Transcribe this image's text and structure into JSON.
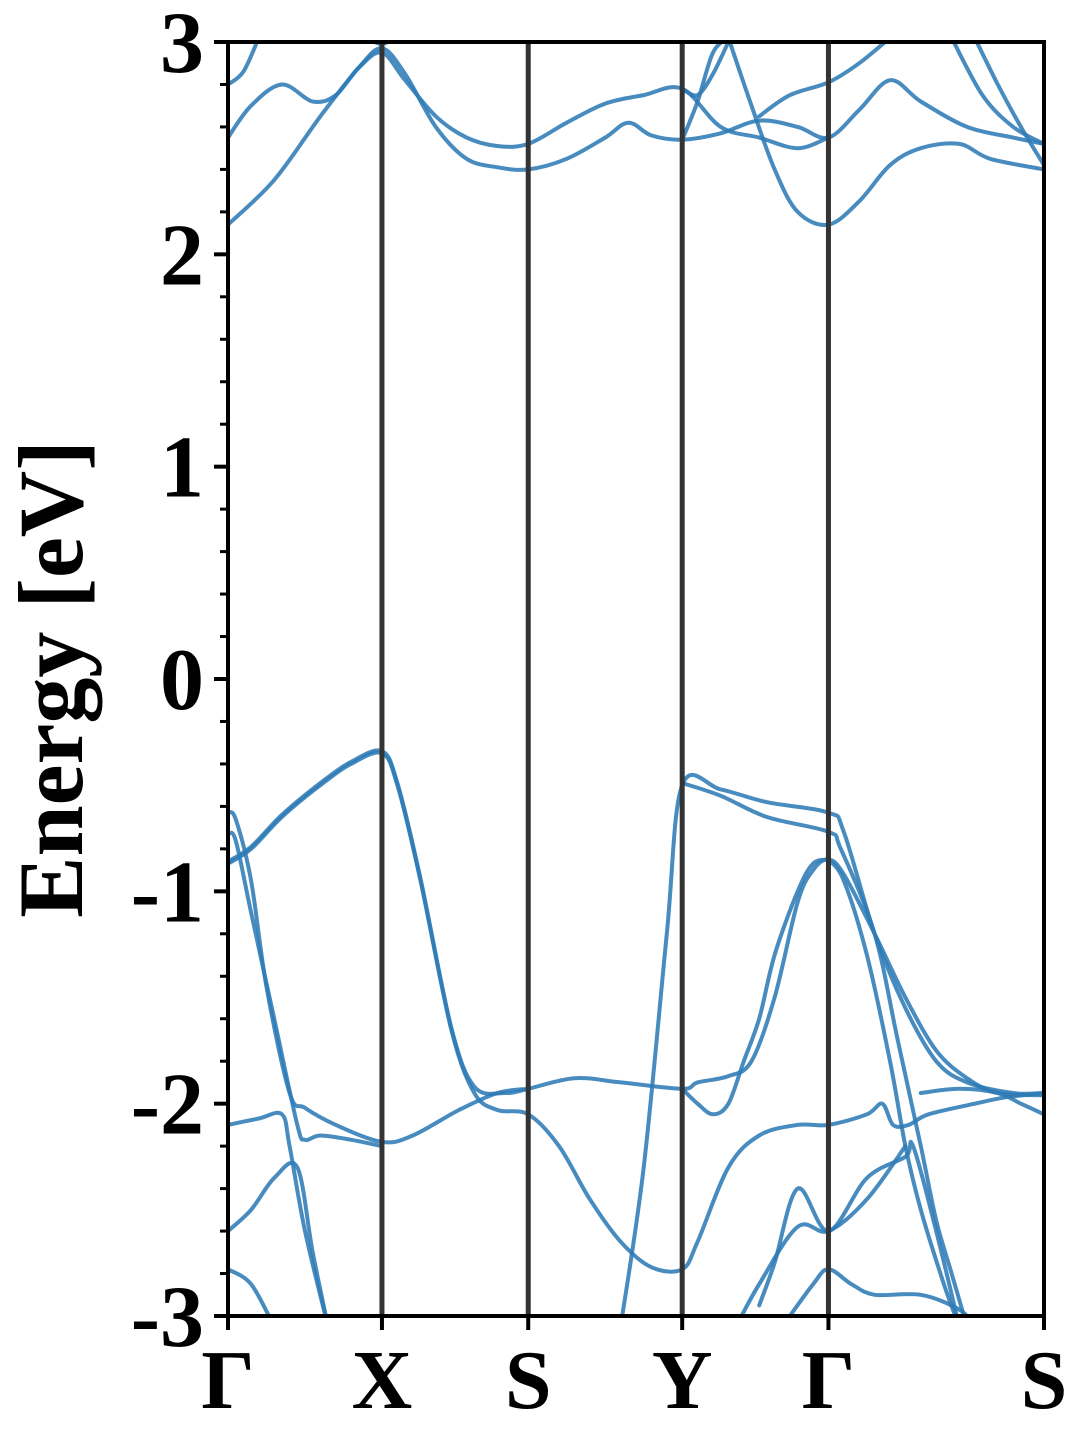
{
  "chart_data": {
    "type": "line",
    "title": "",
    "xlabel": "",
    "ylabel": "Energy [eV]",
    "ylim": [
      -3,
      3
    ],
    "yticks": [
      -3,
      -2,
      -1,
      0,
      1,
      2,
      3
    ],
    "yminor_step": 0.2,
    "xlim": [
      0,
      5.3
    ],
    "high_symmetry_points": [
      {
        "label": "Γ",
        "x": 0.0
      },
      {
        "label": "X",
        "x": 1.0
      },
      {
        "label": "S",
        "x": 1.95
      },
      {
        "label": "Y",
        "x": 2.95
      },
      {
        "label": "Γ",
        "x": 3.9
      },
      {
        "label": "S",
        "x": 5.3
      }
    ],
    "grid": false,
    "colors": {
      "band": "#2e7bb6",
      "kpath_line": "#333333",
      "axis": "#000000"
    },
    "series": [
      {
        "values": [
          [
            0.0,
            -0.87
          ],
          [
            0.15,
            -0.8
          ],
          [
            0.35,
            -0.65
          ],
          [
            0.6,
            -0.5
          ],
          [
            0.8,
            -0.4
          ],
          [
            1.0,
            -0.35
          ],
          [
            1.1,
            -0.5
          ],
          [
            1.25,
            -0.95
          ],
          [
            1.45,
            -1.65
          ],
          [
            1.6,
            -1.95
          ],
          [
            1.75,
            -2.03
          ],
          [
            1.95,
            -2.05
          ],
          [
            2.15,
            -2.2
          ],
          [
            2.35,
            -2.45
          ],
          [
            2.55,
            -2.65
          ],
          [
            2.75,
            -2.77
          ],
          [
            2.95,
            -2.78
          ],
          [
            3.05,
            -2.65
          ],
          [
            3.25,
            -2.3
          ],
          [
            3.45,
            -2.15
          ],
          [
            3.7,
            -2.1
          ],
          [
            3.9,
            -2.1
          ],
          [
            4.15,
            -2.05
          ],
          [
            4.25,
            -2.0
          ],
          [
            4.32,
            -2.1
          ],
          [
            4.42,
            -2.1
          ],
          [
            4.55,
            -2.05
          ],
          [
            4.85,
            -2.0
          ],
          [
            5.05,
            -1.97
          ],
          [
            5.3,
            -1.95
          ]
        ]
      },
      {
        "values": [
          [
            0.0,
            -0.86
          ],
          [
            0.15,
            -0.79
          ],
          [
            0.35,
            -0.64
          ],
          [
            0.6,
            -0.49
          ],
          [
            0.8,
            -0.39
          ],
          [
            1.0,
            -0.34
          ],
          [
            1.1,
            -0.49
          ],
          [
            1.25,
            -0.94
          ],
          [
            1.45,
            -1.64
          ],
          [
            1.6,
            -1.92
          ],
          [
            1.8,
            -1.95
          ],
          [
            1.95,
            -1.93
          ],
          [
            2.25,
            -1.88
          ],
          [
            2.55,
            -1.9
          ],
          [
            2.95,
            -1.93
          ],
          [
            3.05,
            -1.9
          ],
          [
            3.25,
            -1.87
          ],
          [
            3.4,
            -1.8
          ],
          [
            3.55,
            -1.5
          ],
          [
            3.7,
            -1.05
          ],
          [
            3.8,
            -0.9
          ],
          [
            3.9,
            -0.85
          ],
          [
            4.0,
            -0.92
          ],
          [
            4.2,
            -1.2
          ],
          [
            4.4,
            -1.5
          ],
          [
            4.6,
            -1.75
          ],
          [
            4.8,
            -1.88
          ],
          [
            5.0,
            -1.95
          ],
          [
            5.3,
            -1.96
          ]
        ]
      },
      {
        "values": [
          [
            0.0,
            -0.63
          ],
          [
            0.05,
            -0.66
          ],
          [
            0.15,
            -0.95
          ],
          [
            0.25,
            -1.45
          ],
          [
            0.4,
            -1.95
          ],
          [
            0.5,
            -2.02
          ],
          [
            0.7,
            -2.1
          ],
          [
            1.0,
            -2.18
          ],
          [
            1.2,
            -2.15
          ],
          [
            1.5,
            -2.03
          ],
          [
            1.75,
            -1.95
          ],
          [
            1.95,
            -1.93
          ]
        ]
      },
      {
        "values": [
          [
            0.0,
            -0.73
          ],
          [
            0.05,
            -0.76
          ],
          [
            0.15,
            -1.1
          ],
          [
            0.3,
            -1.6
          ],
          [
            0.45,
            -2.1
          ],
          [
            0.5,
            -2.17
          ],
          [
            0.6,
            -2.15
          ],
          [
            0.8,
            -2.17
          ],
          [
            1.0,
            -2.2
          ]
        ]
      },
      {
        "values": [
          [
            2.55,
            -3.05
          ],
          [
            2.7,
            -2.3
          ],
          [
            2.85,
            -1.2
          ],
          [
            2.95,
            -0.5
          ],
          [
            3.2,
            -0.52
          ],
          [
            3.5,
            -0.58
          ],
          [
            3.9,
            -0.63
          ],
          [
            4.0,
            -0.72
          ],
          [
            4.2,
            -1.2
          ],
          [
            4.4,
            -1.55
          ],
          [
            4.6,
            -1.8
          ],
          [
            4.8,
            -1.9
          ],
          [
            5.1,
            -1.95
          ],
          [
            5.3,
            -1.95
          ]
        ]
      },
      {
        "values": [
          [
            2.95,
            -0.49
          ],
          [
            3.2,
            -0.55
          ],
          [
            3.5,
            -0.65
          ],
          [
            3.9,
            -0.72
          ],
          [
            3.98,
            -0.8
          ],
          [
            4.2,
            -1.2
          ],
          [
            4.35,
            -1.7
          ],
          [
            4.5,
            -2.2
          ],
          [
            4.6,
            -2.55
          ],
          [
            4.7,
            -2.8
          ],
          [
            4.8,
            -3.05
          ]
        ]
      },
      {
        "values": [
          [
            3.9,
            -0.85
          ],
          [
            4.0,
            -0.95
          ],
          [
            4.15,
            -1.3
          ],
          [
            4.3,
            -1.8
          ],
          [
            4.4,
            -2.2
          ],
          [
            4.5,
            -2.5
          ],
          [
            4.65,
            -2.85
          ],
          [
            4.75,
            -3.05
          ]
        ]
      },
      {
        "values": [
          [
            2.95,
            -1.93
          ],
          [
            3.05,
            -2.0
          ],
          [
            3.15,
            -2.05
          ],
          [
            3.25,
            -2.0
          ],
          [
            3.35,
            -1.8
          ],
          [
            3.45,
            -1.6
          ],
          [
            3.55,
            -1.3
          ],
          [
            3.7,
            -1.0
          ],
          [
            3.8,
            -0.87
          ],
          [
            3.9,
            -0.85
          ]
        ]
      },
      {
        "values": [
          [
            0.0,
            -2.1
          ],
          [
            0.2,
            -2.07
          ],
          [
            0.35,
            -2.05
          ],
          [
            0.4,
            -2.2
          ],
          [
            0.5,
            -2.6
          ],
          [
            0.65,
            -3.05
          ]
        ]
      },
      {
        "values": [
          [
            0.0,
            -2.6
          ],
          [
            0.15,
            -2.5
          ],
          [
            0.3,
            -2.35
          ],
          [
            0.45,
            -2.3
          ],
          [
            0.55,
            -2.7
          ],
          [
            0.65,
            -3.05
          ]
        ]
      },
      {
        "values": [
          [
            0.0,
            -2.78
          ],
          [
            0.15,
            -2.85
          ],
          [
            0.3,
            -3.05
          ]
        ]
      },
      {
        "values": [
          [
            3.45,
            -2.95
          ],
          [
            3.55,
            -2.75
          ],
          [
            3.7,
            -2.4
          ],
          [
            3.9,
            -2.6
          ],
          [
            4.15,
            -2.35
          ],
          [
            4.4,
            -2.25
          ],
          [
            4.45,
            -2.2
          ],
          [
            4.6,
            -2.6
          ],
          [
            4.75,
            -3.05
          ]
        ]
      },
      {
        "values": [
          [
            3.3,
            -3.05
          ],
          [
            3.45,
            -2.85
          ],
          [
            3.7,
            -2.58
          ],
          [
            3.9,
            -2.6
          ],
          [
            4.15,
            -2.45
          ],
          [
            4.4,
            -2.2
          ]
        ]
      },
      {
        "values": [
          [
            3.6,
            -3.05
          ],
          [
            3.8,
            -2.85
          ],
          [
            3.9,
            -2.78
          ],
          [
            4.05,
            -2.85
          ],
          [
            4.2,
            -2.9
          ],
          [
            4.5,
            -2.9
          ],
          [
            4.75,
            -2.97
          ],
          [
            4.85,
            -3.05
          ]
        ]
      },
      {
        "values": [
          [
            4.5,
            -1.95
          ],
          [
            4.75,
            -1.93
          ],
          [
            5.0,
            -1.95
          ],
          [
            5.15,
            -2.0
          ],
          [
            5.3,
            -2.05
          ]
        ]
      },
      {
        "values": [
          [
            0.0,
            2.14
          ],
          [
            0.3,
            2.35
          ],
          [
            0.6,
            2.65
          ],
          [
            0.85,
            2.88
          ],
          [
            1.0,
            2.97
          ],
          [
            1.15,
            2.85
          ],
          [
            1.35,
            2.6
          ],
          [
            1.55,
            2.45
          ],
          [
            1.75,
            2.41
          ],
          [
            1.95,
            2.4
          ],
          [
            2.2,
            2.45
          ],
          [
            2.45,
            2.55
          ],
          [
            2.6,
            2.62
          ],
          [
            2.75,
            2.56
          ],
          [
            2.95,
            2.54
          ],
          [
            3.2,
            2.57
          ],
          [
            3.45,
            2.63
          ],
          [
            3.7,
            2.6
          ],
          [
            3.9,
            2.55
          ],
          [
            4.1,
            2.68
          ],
          [
            4.3,
            2.82
          ],
          [
            4.5,
            2.72
          ],
          [
            4.8,
            2.6
          ],
          [
            5.1,
            2.55
          ],
          [
            5.3,
            2.52
          ]
        ]
      },
      {
        "values": [
          [
            0.0,
            2.55
          ],
          [
            0.15,
            2.7
          ],
          [
            0.35,
            2.8
          ],
          [
            0.55,
            2.72
          ],
          [
            0.7,
            2.75
          ],
          [
            0.85,
            2.88
          ],
          [
            1.0,
            2.95
          ],
          [
            1.15,
            2.82
          ],
          [
            1.35,
            2.65
          ],
          [
            1.55,
            2.55
          ],
          [
            1.75,
            2.51
          ],
          [
            1.95,
            2.52
          ],
          [
            2.2,
            2.62
          ],
          [
            2.45,
            2.71
          ],
          [
            2.7,
            2.75
          ],
          [
            2.95,
            2.78
          ],
          [
            3.2,
            2.6
          ],
          [
            3.45,
            2.55
          ],
          [
            3.7,
            2.5
          ],
          [
            3.9,
            2.55
          ]
        ]
      },
      {
        "values": [
          [
            0.0,
            2.8
          ],
          [
            0.1,
            2.86
          ],
          [
            0.2,
            3.02
          ]
        ]
      },
      {
        "values": [
          [
            0.9,
            3.02
          ],
          [
            1.0,
            2.99
          ],
          [
            1.1,
            3.03
          ]
        ]
      },
      {
        "values": [
          [
            2.95,
            2.54
          ],
          [
            3.05,
            2.72
          ],
          [
            3.15,
            2.95
          ],
          [
            3.25,
            3.02
          ]
        ]
      },
      {
        "values": [
          [
            2.95,
            2.78
          ],
          [
            3.05,
            2.75
          ],
          [
            3.15,
            2.85
          ],
          [
            3.25,
            3.0
          ]
        ]
      },
      {
        "values": [
          [
            3.25,
            3.02
          ],
          [
            3.4,
            2.7
          ],
          [
            3.55,
            2.4
          ],
          [
            3.7,
            2.2
          ],
          [
            3.9,
            2.14
          ],
          [
            4.1,
            2.25
          ],
          [
            4.3,
            2.42
          ],
          [
            4.5,
            2.5
          ],
          [
            4.75,
            2.52
          ],
          [
            4.95,
            2.45
          ],
          [
            5.3,
            2.4
          ]
        ]
      },
      {
        "values": [
          [
            3.45,
            2.65
          ],
          [
            3.65,
            2.75
          ],
          [
            3.9,
            2.81
          ],
          [
            4.1,
            2.9
          ],
          [
            4.3,
            3.02
          ]
        ]
      },
      {
        "values": [
          [
            4.7,
            3.02
          ],
          [
            4.9,
            2.75
          ],
          [
            5.1,
            2.6
          ],
          [
            5.3,
            2.52
          ]
        ]
      },
      {
        "values": [
          [
            4.85,
            3.02
          ],
          [
            5.0,
            2.8
          ],
          [
            5.15,
            2.6
          ],
          [
            5.3,
            2.42
          ]
        ]
      }
    ]
  }
}
